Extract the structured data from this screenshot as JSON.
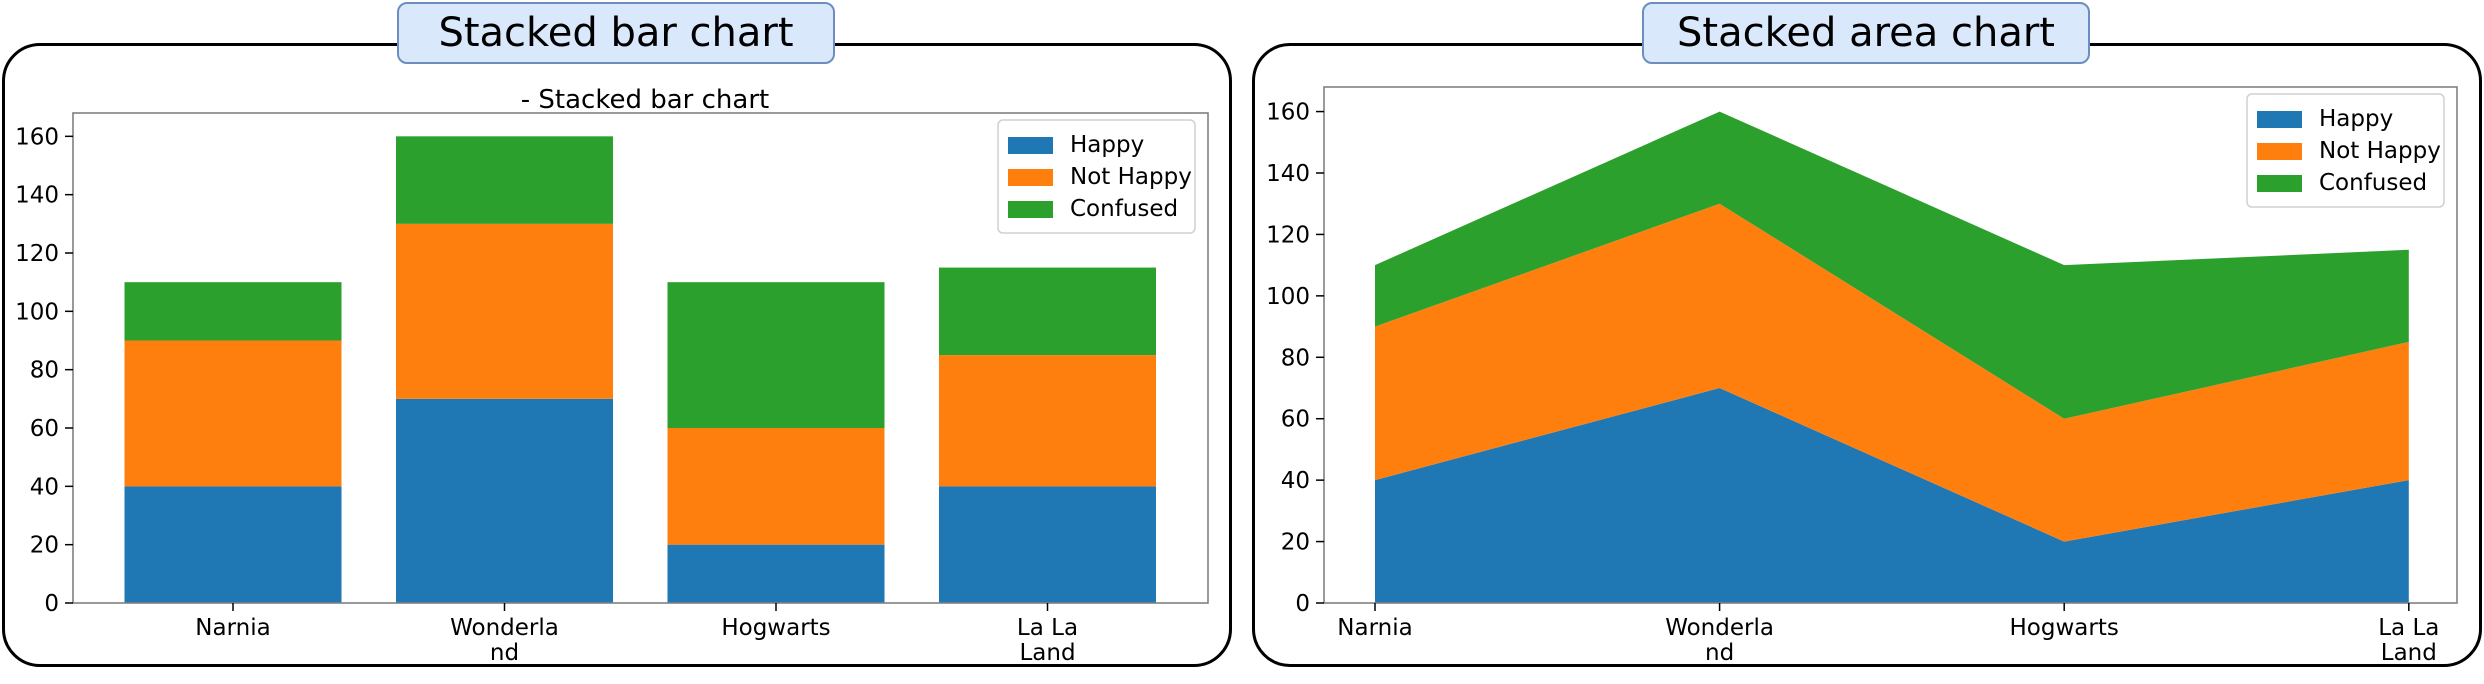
{
  "charts": [
    {
      "panel_title": "Stacked bar chart",
      "chart_data": {
        "type": "bar",
        "stacked": true,
        "title": "- Stacked bar chart",
        "categories": [
          "Narnia",
          "Wonderla\nnd",
          "Hogwarts",
          "La La\nLand"
        ],
        "series": [
          {
            "name": "Happy",
            "values": [
              40,
              70,
              20,
              40
            ],
            "color": "#1f77b4"
          },
          {
            "name": "Not Happy",
            "values": [
              50,
              60,
              40,
              45
            ],
            "color": "#ff7f0e"
          },
          {
            "name": "Confused",
            "values": [
              20,
              30,
              50,
              30
            ],
            "color": "#2ca02c"
          }
        ],
        "ylim": [
          0,
          168
        ],
        "yticks": [
          0,
          20,
          40,
          60,
          80,
          100,
          120,
          140,
          160
        ],
        "legend": "top-right",
        "grid": false
      }
    },
    {
      "panel_title": "Stacked area chart",
      "chart_data": {
        "type": "area",
        "stacked": true,
        "title": "",
        "categories": [
          "Narnia",
          "Wonderla\nnd",
          "Hogwarts",
          "La La\nLand"
        ],
        "series": [
          {
            "name": "Happy",
            "values": [
              40,
              70,
              20,
              40
            ],
            "color": "#1f77b4"
          },
          {
            "name": "Not Happy",
            "values": [
              50,
              60,
              40,
              45
            ],
            "color": "#ff7f0e"
          },
          {
            "name": "Confused",
            "values": [
              20,
              30,
              50,
              30
            ],
            "color": "#2ca02c"
          }
        ],
        "ylim": [
          0,
          168
        ],
        "yticks": [
          0,
          20,
          40,
          60,
          80,
          100,
          120,
          140,
          160
        ],
        "legend": "top-right",
        "grid": false
      }
    }
  ]
}
